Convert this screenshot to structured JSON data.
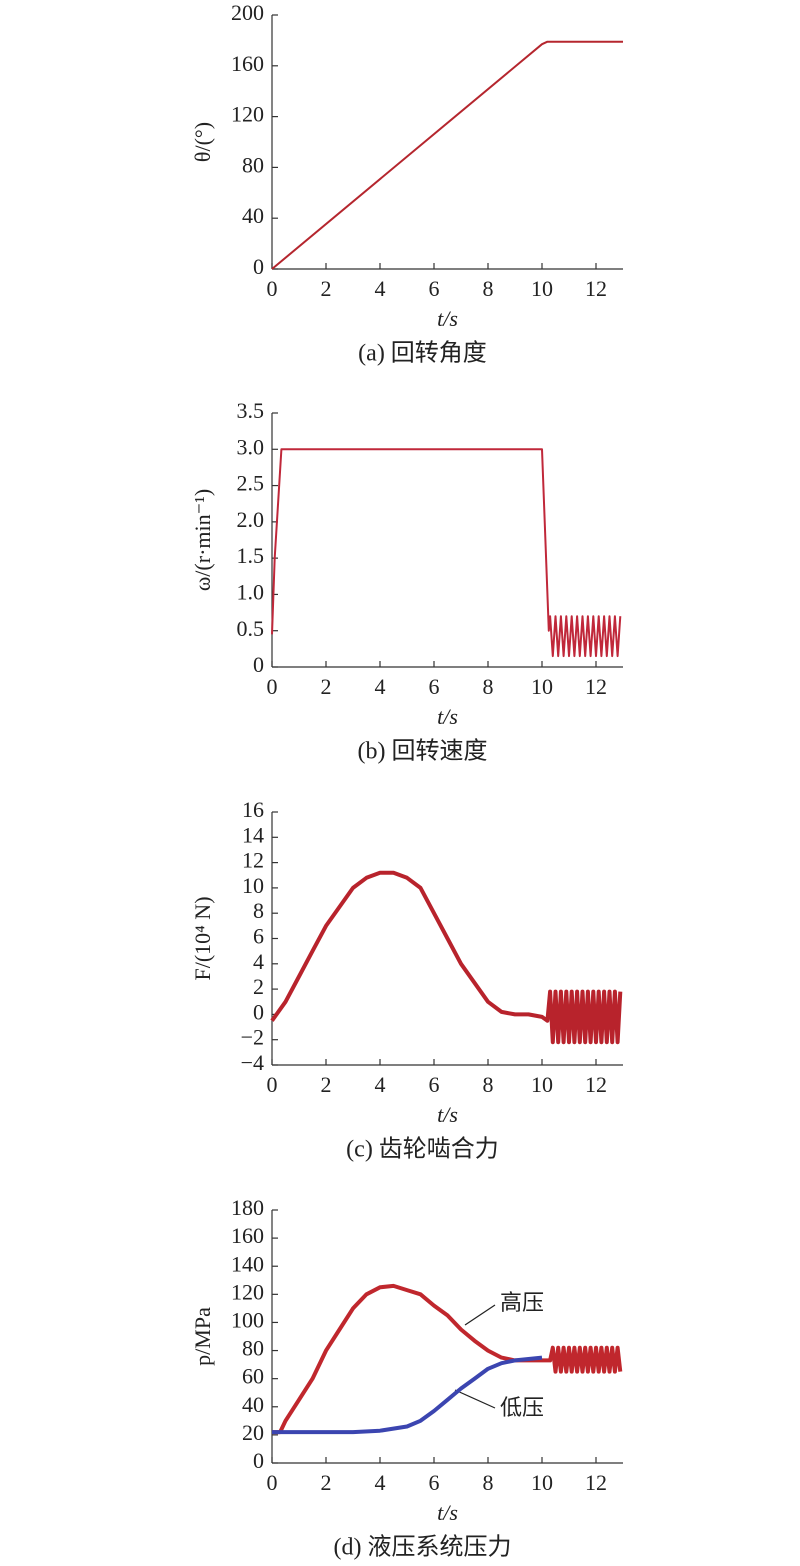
{
  "chart_data": [
    {
      "type": "line",
      "caption": "(a) 回转角度",
      "xlabel": "t/s",
      "ylabel": "θ/(°)",
      "xlim": [
        0,
        13
      ],
      "xticks": [
        0,
        2,
        4,
        6,
        8,
        10,
        12
      ],
      "ylim": [
        0,
        200
      ],
      "yticks": [
        0,
        40,
        80,
        120,
        160,
        200
      ],
      "series": [
        {
          "color": "#b5262e",
          "x": [
            0,
            10,
            10.2,
            13
          ],
          "values": [
            0,
            177,
            179,
            179
          ]
        }
      ]
    },
    {
      "type": "line",
      "caption": "(b) 回转速度",
      "xlabel": "t/s",
      "ylabel": "ω/(r·min⁻¹)",
      "xlim": [
        0,
        13
      ],
      "xticks": [
        0,
        2,
        4,
        6,
        8,
        10,
        12
      ],
      "ylim": [
        0,
        3.5
      ],
      "yticks": [
        0,
        0.5,
        {
          "value": 1,
          "label": "1.0"
        },
        1.5,
        {
          "value": 2,
          "label": "2.0"
        },
        2.5,
        {
          "value": 3,
          "label": "3.0"
        },
        3.5
      ],
      "series": [
        {
          "color": "#c0283a",
          "x": [
            0,
            0.1,
            0.35,
            10,
            10.25,
            10.3,
            10.4,
            10.5,
            10.6,
            10.7,
            10.8,
            10.9,
            11,
            11.1,
            11.2,
            11.3,
            11.4,
            11.5,
            11.6,
            11.7,
            11.8,
            11.9,
            12,
            12.1,
            12.2,
            12.3,
            12.4,
            12.5,
            12.6,
            12.7,
            12.8,
            12.9
          ],
          "values": [
            0.45,
            1.5,
            3.0,
            3.0,
            0.5,
            0.7,
            0.15,
            0.7,
            0.15,
            0.7,
            0.15,
            0.7,
            0.15,
            0.7,
            0.15,
            0.7,
            0.15,
            0.7,
            0.15,
            0.7,
            0.15,
            0.7,
            0.15,
            0.7,
            0.15,
            0.7,
            0.15,
            0.7,
            0.15,
            0.7,
            0.15,
            0.7
          ]
        }
      ]
    },
    {
      "type": "line",
      "caption": "(c) 齿轮啮合力",
      "xlabel": "t/s",
      "ylabel": "F/(10⁴ N)",
      "xlim": [
        0,
        13
      ],
      "xticks": [
        0,
        2,
        4,
        6,
        8,
        10,
        12
      ],
      "ylim": [
        -4,
        16
      ],
      "yticks": [
        {
          "value": -4,
          "label": "−4"
        },
        {
          "value": -2,
          "label": "−2"
        },
        0,
        2,
        4,
        6,
        8,
        10,
        12,
        14,
        16
      ],
      "series": [
        {
          "color": "#b8232c",
          "x": [
            0,
            0.5,
            1,
            1.5,
            2,
            2.5,
            3,
            3.5,
            4,
            4.5,
            5,
            5.5,
            6,
            6.5,
            7,
            7.5,
            8,
            8.5,
            9,
            9.5,
            10,
            10.2,
            10.3,
            10.4,
            10.5,
            10.6,
            10.7,
            10.8,
            10.9,
            11,
            11.1,
            11.2,
            11.3,
            11.4,
            11.5,
            11.6,
            11.7,
            11.8,
            11.9,
            12,
            12.1,
            12.2,
            12.3,
            12.4,
            12.5,
            12.6,
            12.7,
            12.8,
            12.9
          ],
          "values": [
            -0.5,
            1,
            3,
            5,
            7,
            8.5,
            10,
            10.8,
            11.2,
            11.2,
            10.8,
            10,
            8,
            6,
            4,
            2.5,
            1,
            0.2,
            0,
            0,
            -0.2,
            -0.5,
            1.8,
            -2.2,
            1.8,
            -2.2,
            1.8,
            -2.2,
            1.8,
            -2.2,
            1.8,
            -2.2,
            1.8,
            -2.2,
            1.8,
            -2.2,
            1.8,
            -2.2,
            1.8,
            -2.2,
            1.8,
            -2.2,
            1.8,
            -2.2,
            1.8,
            -2.2,
            1.8,
            -2.2,
            1.8
          ]
        }
      ]
    },
    {
      "type": "line",
      "caption": "(d) 液压系统压力",
      "xlabel": "t/s",
      "ylabel": "p/MPa",
      "xlim": [
        0,
        13
      ],
      "xticks": [
        0,
        2,
        4,
        6,
        8,
        10,
        12
      ],
      "ylim": [
        0,
        180
      ],
      "yticks": [
        0,
        20,
        40,
        60,
        80,
        100,
        120,
        140,
        160,
        180
      ],
      "series": [
        {
          "name": "高压",
          "color": "#c0272d",
          "x": [
            0,
            0.3,
            0.5,
            1,
            1.5,
            2,
            2.5,
            3,
            3.5,
            4,
            4.5,
            5,
            5.5,
            6,
            6.5,
            7,
            7.5,
            8,
            8.5,
            9,
            9.5,
            10,
            10.3,
            10.4,
            10.5,
            10.6,
            10.7,
            10.8,
            10.9,
            11,
            11.1,
            11.2,
            11.3,
            11.4,
            11.5,
            11.6,
            11.7,
            11.8,
            11.9,
            12,
            12.1,
            12.2,
            12.3,
            12.4,
            12.5,
            12.6,
            12.7,
            12.8,
            12.9
          ],
          "values": [
            22,
            22,
            30,
            45,
            60,
            80,
            95,
            110,
            120,
            125,
            126,
            123,
            120,
            112,
            105,
            95,
            87,
            80,
            75,
            73,
            73,
            73,
            73,
            82,
            65,
            82,
            65,
            82,
            65,
            82,
            65,
            82,
            65,
            82,
            65,
            82,
            65,
            82,
            65,
            82,
            65,
            82,
            65,
            82,
            65,
            82,
            65,
            82,
            65
          ]
        },
        {
          "name": "低压",
          "color": "#3b45b0",
          "x": [
            0,
            1,
            2,
            3,
            4,
            5,
            5.5,
            6,
            6.5,
            7,
            7.5,
            8,
            8.5,
            9,
            9.5,
            10
          ],
          "values": [
            22,
            22,
            22,
            22,
            23,
            26,
            30,
            37,
            45,
            53,
            60,
            67,
            71,
            73,
            74,
            75
          ]
        }
      ]
    }
  ]
}
